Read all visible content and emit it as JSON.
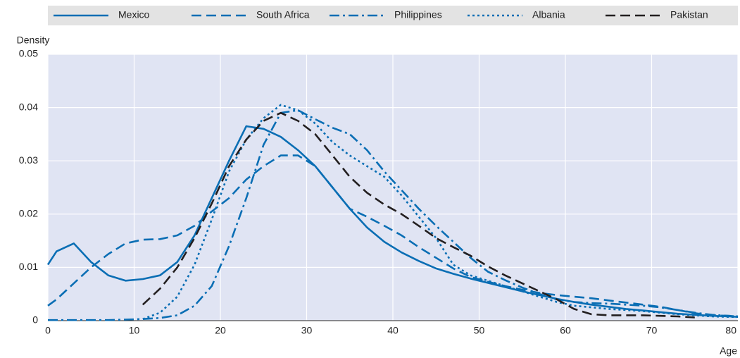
{
  "chart_data": {
    "type": "line",
    "y_label": "Density",
    "x_label": "Age",
    "x": [
      0,
      1,
      3,
      5,
      7,
      9,
      11,
      13,
      15,
      17,
      19,
      21,
      23,
      25,
      27,
      29,
      31,
      33,
      35,
      37,
      39,
      41,
      43,
      45,
      47,
      49,
      51,
      53,
      55,
      57,
      59,
      61,
      63,
      65,
      67,
      69,
      71,
      73,
      75,
      77,
      79,
      80
    ],
    "xlim": [
      0,
      80
    ],
    "xticks": [
      0,
      10,
      20,
      30,
      40,
      50,
      60,
      70,
      80
    ],
    "ylim": [
      0,
      0.05
    ],
    "yticks": [
      0,
      0.01,
      0.02,
      0.03,
      0.04,
      0.05
    ],
    "grid": true,
    "legend": "top",
    "series": [
      {
        "name": "Mexico",
        "color": "#0a6eb4",
        "linestyle": "solid",
        "values": [
          0.0105,
          0.013,
          0.0145,
          0.011,
          0.0085,
          0.0075,
          0.0078,
          0.0085,
          0.011,
          0.016,
          0.023,
          0.03,
          0.0365,
          0.036,
          0.0345,
          0.032,
          0.029,
          0.025,
          0.021,
          0.0175,
          0.0148,
          0.0128,
          0.0112,
          0.0098,
          0.0088,
          0.0079,
          0.0071,
          0.0063,
          0.0055,
          0.0048,
          0.0041,
          0.0035,
          0.003,
          0.0026,
          0.0022,
          0.0019,
          0.0016,
          0.0013,
          0.0011,
          0.0009,
          0.0008,
          0.0007
        ]
      },
      {
        "name": "South Africa",
        "color": "#0a6eb4",
        "linestyle": "dashed",
        "values": [
          0.0028,
          0.004,
          0.007,
          0.01,
          0.0125,
          0.0145,
          0.0152,
          0.0153,
          0.016,
          0.0178,
          0.0205,
          0.023,
          0.0265,
          0.029,
          0.031,
          0.031,
          0.029,
          0.025,
          0.021,
          0.0195,
          0.0178,
          0.016,
          0.0138,
          0.0118,
          0.0098,
          0.0082,
          0.0073,
          0.0065,
          0.0058,
          0.0052,
          0.0048,
          0.0045,
          0.0042,
          0.0038,
          0.0034,
          0.003,
          0.0026,
          0.002,
          0.0014,
          0.001,
          0.0009,
          0.0008
        ]
      },
      {
        "name": "Philippines",
        "color": "#0a6eb4",
        "linestyle": "dashdot",
        "values": [
          0.0001,
          0.0001,
          0.0001,
          0.0001,
          0.0001,
          0.0002,
          0.0003,
          0.0005,
          0.001,
          0.0028,
          0.0065,
          0.014,
          0.023,
          0.033,
          0.039,
          0.0395,
          0.0378,
          0.0362,
          0.035,
          0.032,
          0.028,
          0.0245,
          0.021,
          0.0178,
          0.0148,
          0.0118,
          0.0092,
          0.0076,
          0.0062,
          0.005,
          0.004,
          0.0035,
          0.0033,
          0.0032,
          0.003,
          0.0028,
          0.0025,
          0.002,
          0.0015,
          0.0011,
          0.0009,
          0.0008
        ]
      },
      {
        "name": "Albania",
        "color": "#0a6eb4",
        "linestyle": "dotted",
        "values": [
          null,
          null,
          null,
          null,
          null,
          null,
          0.0003,
          0.0015,
          0.0045,
          0.0105,
          0.019,
          0.028,
          0.034,
          0.038,
          0.0405,
          0.0395,
          0.037,
          0.0335,
          0.031,
          0.029,
          0.027,
          0.0235,
          0.0195,
          0.0155,
          0.0105,
          0.0085,
          0.0075,
          0.0065,
          0.0055,
          0.0045,
          0.0035,
          0.0028,
          0.0025,
          0.0022,
          0.002,
          0.0018,
          0.0015,
          0.0012,
          0.001,
          0.0008,
          0.0007,
          0.0007
        ]
      },
      {
        "name": "Pakistan",
        "color": "#231f20",
        "linestyle": "dashed",
        "values": [
          null,
          null,
          null,
          null,
          null,
          null,
          0.003,
          0.006,
          0.01,
          0.0155,
          0.022,
          0.029,
          0.034,
          0.0375,
          0.039,
          0.0375,
          0.035,
          0.031,
          0.027,
          0.024,
          0.0218,
          0.02,
          0.0178,
          0.0155,
          0.0138,
          0.0122,
          0.0102,
          0.0085,
          0.007,
          0.0055,
          0.004,
          0.0022,
          0.0012,
          0.001,
          0.001,
          0.001,
          0.0009,
          0.0008,
          0.0006,
          null,
          null,
          null
        ]
      }
    ]
  }
}
